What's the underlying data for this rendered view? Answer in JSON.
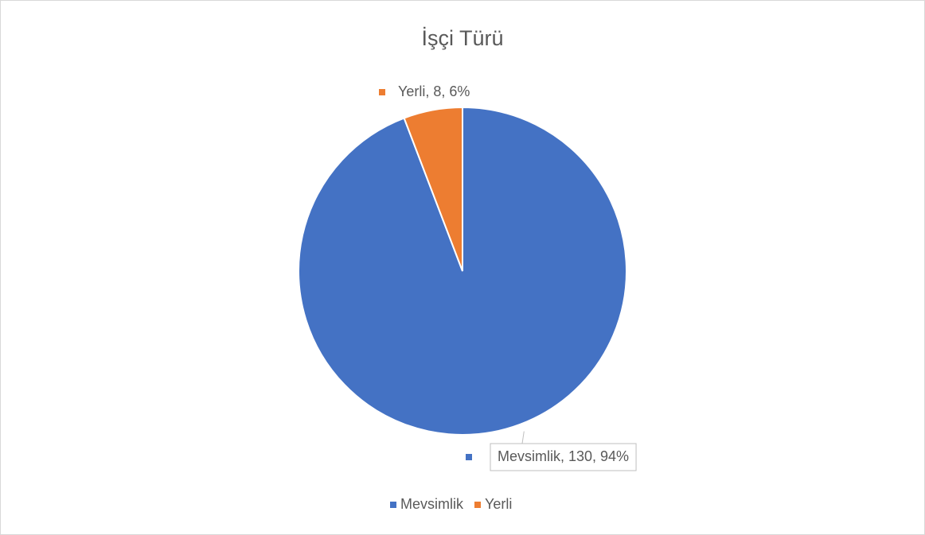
{
  "chart_data": {
    "type": "pie",
    "title": "İşçi Türü",
    "categories": [
      "Mevsimlik",
      "Yerli"
    ],
    "values": [
      130,
      8
    ],
    "value_labels": [
      "Mevsimlik, 130, 94%",
      "Yerli, 8, 6%"
    ],
    "colors": [
      "#4472c4",
      "#ed7d31"
    ],
    "legend": "bottom"
  }
}
